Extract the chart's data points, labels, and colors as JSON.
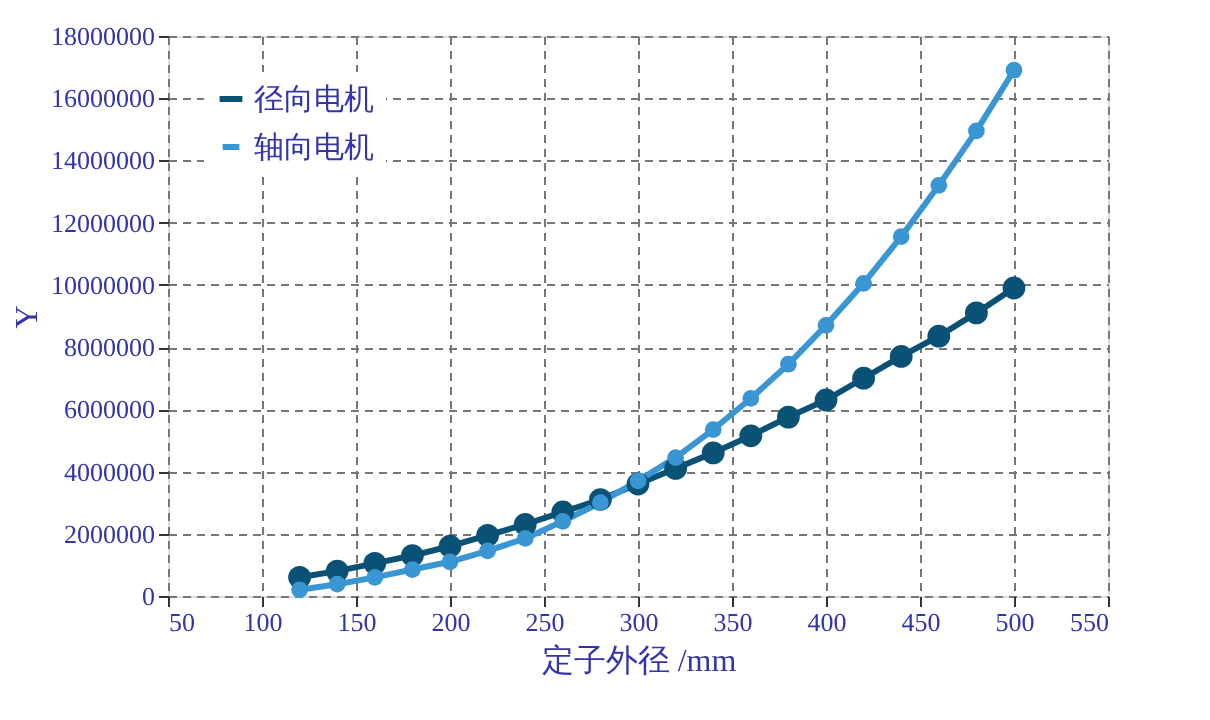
{
  "chart_data": {
    "type": "line",
    "xlabel": "定子外径 /mm",
    "ylabel": "Y",
    "x": [
      120,
      140,
      160,
      180,
      200,
      220,
      240,
      260,
      280,
      300,
      320,
      340,
      360,
      380,
      400,
      420,
      440,
      460,
      480,
      500
    ],
    "series": [
      {
        "name": "径向电机",
        "color": "#0a5275",
        "values": [
          600000,
          800000,
          1050000,
          1300000,
          1600000,
          1950000,
          2300000,
          2700000,
          3100000,
          3600000,
          4100000,
          4600000,
          5150000,
          5750000,
          6300000,
          7000000,
          7700000,
          8350000,
          9100000,
          9900000
        ]
      },
      {
        "name": "轴向电机",
        "color": "#3a96d2",
        "values": [
          200000,
          380000,
          600000,
          850000,
          1100000,
          1450000,
          1850000,
          2400000,
          3000000,
          3700000,
          4450000,
          5350000,
          6350000,
          7450000,
          8700000,
          10050000,
          11550000,
          13200000,
          14950000,
          16900000
        ]
      }
    ],
    "xlim": [
      50,
      550
    ],
    "xticks": [
      50,
      100,
      150,
      200,
      250,
      300,
      350,
      400,
      450,
      500,
      550
    ],
    "ylim": [
      0,
      18000000
    ],
    "yticks": [
      0,
      2000000,
      4000000,
      6000000,
      8000000,
      10000000,
      12000000,
      14000000,
      16000000,
      18000000
    ],
    "grid": true,
    "legend": "top left",
    "marker": "circle",
    "line_style": "solid"
  }
}
